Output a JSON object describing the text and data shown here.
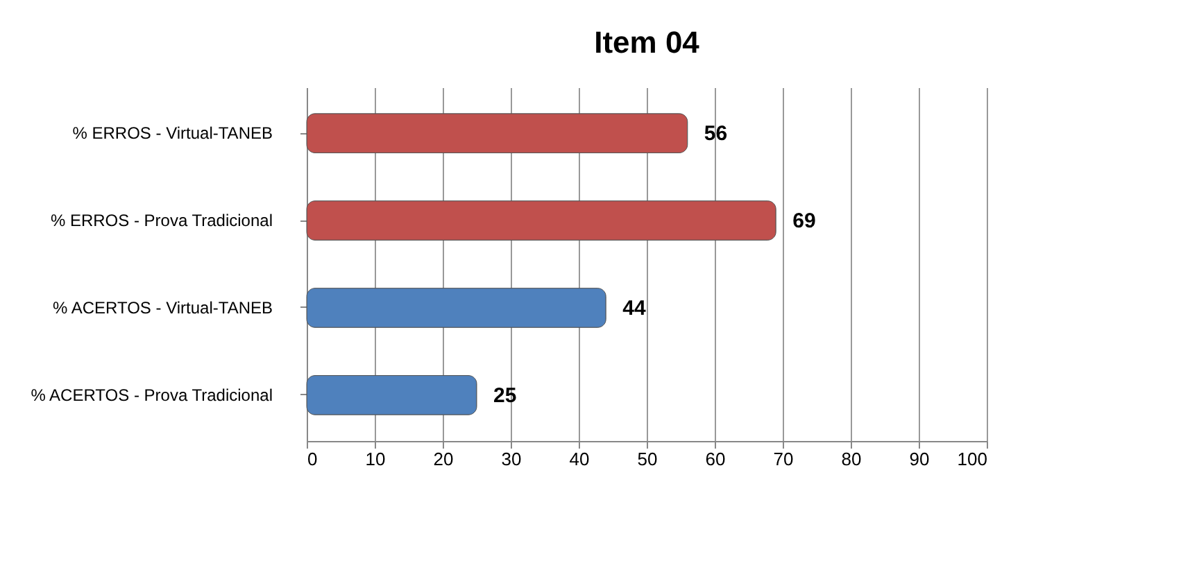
{
  "chart_data": {
    "type": "bar",
    "title": "Item 04",
    "orientation": "horizontal",
    "categories": [
      "% ERROS - Virtual-TANEB",
      "% ERROS - Prova Tradicional",
      "% ACERTOS - Virtual-TANEB",
      "% ACERTOS - Prova Tradicional"
    ],
    "values": [
      56,
      69,
      44,
      25
    ],
    "colors": [
      "#c0504d",
      "#c0504d",
      "#4f81bd",
      "#4f81bd"
    ],
    "xlim": [
      0,
      100
    ],
    "xticks": [
      0,
      10,
      20,
      30,
      40,
      50,
      60,
      70,
      80,
      90,
      100
    ],
    "grid": "x",
    "data_labels": true
  }
}
